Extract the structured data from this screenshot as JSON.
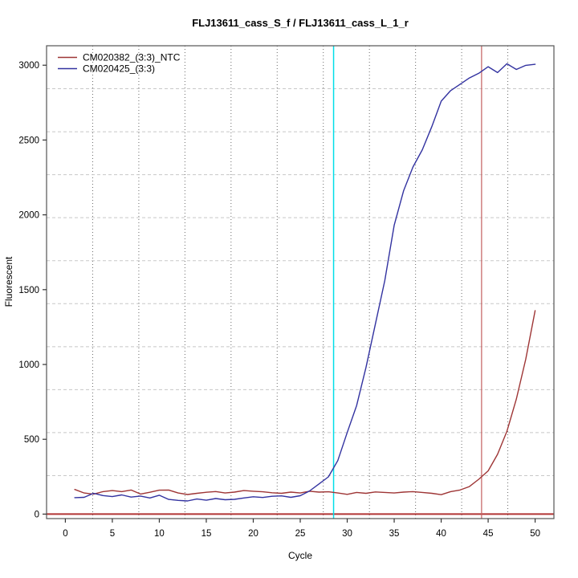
{
  "title": "FLJ13611_cass_S_f / FLJ13611_cass_L_1_r",
  "chart_data": {
    "type": "line",
    "title": "FLJ13611_cass_S_f / FLJ13611_cass_L_1_r",
    "xlabel": "Cycle",
    "ylabel": "Fluorescent",
    "xlim": [
      -2,
      52
    ],
    "ylim": [
      -30,
      3130
    ],
    "xticks": [
      0,
      5,
      10,
      15,
      20,
      25,
      30,
      35,
      40,
      45,
      50
    ],
    "yticks": [
      0,
      500,
      1000,
      1500,
      2000,
      2500,
      3000
    ],
    "grid": {
      "nx": 11,
      "ny": 11,
      "vline_style": "dotted",
      "hline_style": "dashed",
      "vline_color": "#6a6a6a",
      "hline_color": "#c8c8c8"
    },
    "legend_position": "top-left",
    "x": [
      1,
      2,
      3,
      4,
      5,
      6,
      7,
      8,
      9,
      10,
      11,
      12,
      13,
      14,
      15,
      16,
      17,
      18,
      19,
      20,
      21,
      22,
      23,
      24,
      25,
      26,
      27,
      28,
      29,
      30,
      31,
      32,
      33,
      34,
      35,
      36,
      37,
      38,
      39,
      40,
      41,
      42,
      43,
      44,
      45,
      46,
      47,
      48,
      49,
      50
    ],
    "series": [
      {
        "name": "CM020382_(3:3)_NTC",
        "color": "#9e3535",
        "values": [
          165,
          141,
          133,
          150,
          157,
          150,
          161,
          134,
          146,
          160,
          161,
          141,
          131,
          139,
          146,
          151,
          141,
          147,
          157,
          153,
          149,
          143,
          139,
          147,
          141,
          153,
          147,
          149,
          141,
          132,
          145,
          139,
          148,
          145,
          141,
          147,
          150,
          145,
          139,
          130,
          150,
          161,
          184,
          233,
          289,
          400,
          554,
          769,
          1035,
          1360
        ]
      },
      {
        "name": "CM020425_(3:3)",
        "color": "#3232a0",
        "values": [
          110,
          112,
          139,
          124,
          117,
          128,
          114,
          121,
          108,
          126,
          98,
          92,
          88,
          101,
          93,
          104,
          96,
          99,
          108,
          116,
          111,
          119,
          122,
          112,
          123,
          155,
          202,
          249,
          358,
          545,
          725,
          980,
          1270,
          1560,
          1930,
          2160,
          2320,
          2435,
          2590,
          2760,
          2830,
          2872,
          2915,
          2946,
          2990,
          2951,
          3010,
          2972,
          2999,
          3006
        ]
      }
    ],
    "vlines": [
      {
        "x": 28.55,
        "color": "#00dde8",
        "width": 1.5,
        "label": "threshold-cycle-marker"
      },
      {
        "x": 44.3,
        "color": "#c46060",
        "width": 1.2,
        "label": "ct-marker"
      }
    ],
    "hlines": [
      {
        "y": 0,
        "color": "#b23535",
        "width": 2,
        "label": "baseline"
      }
    ],
    "box_color": "#555555",
    "tick_color": "#333333"
  }
}
